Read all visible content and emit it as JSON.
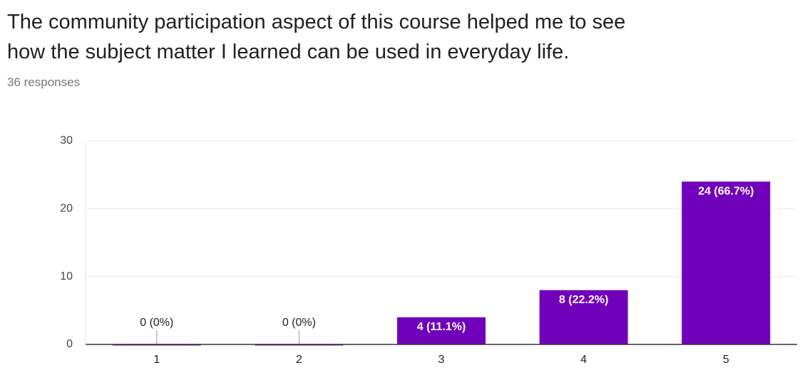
{
  "chart_data": {
    "type": "bar",
    "title": [
      "The community participation aspect of this course helped me to see",
      "how the subject matter I learned can be used in everyday life."
    ],
    "subtitle": "36 responses",
    "categories": [
      "1",
      "2",
      "3",
      "4",
      "5"
    ],
    "values": [
      0,
      0,
      4,
      8,
      24
    ],
    "value_labels": [
      "0 (0%)",
      "0 (0%)",
      "4 (11.1%)",
      "8 (22.2%)",
      "24 (66.7%)"
    ],
    "color": "#7100bb",
    "ylim": [
      0,
      30
    ],
    "yticks": [
      0,
      10,
      20,
      30
    ],
    "grid": true
  }
}
